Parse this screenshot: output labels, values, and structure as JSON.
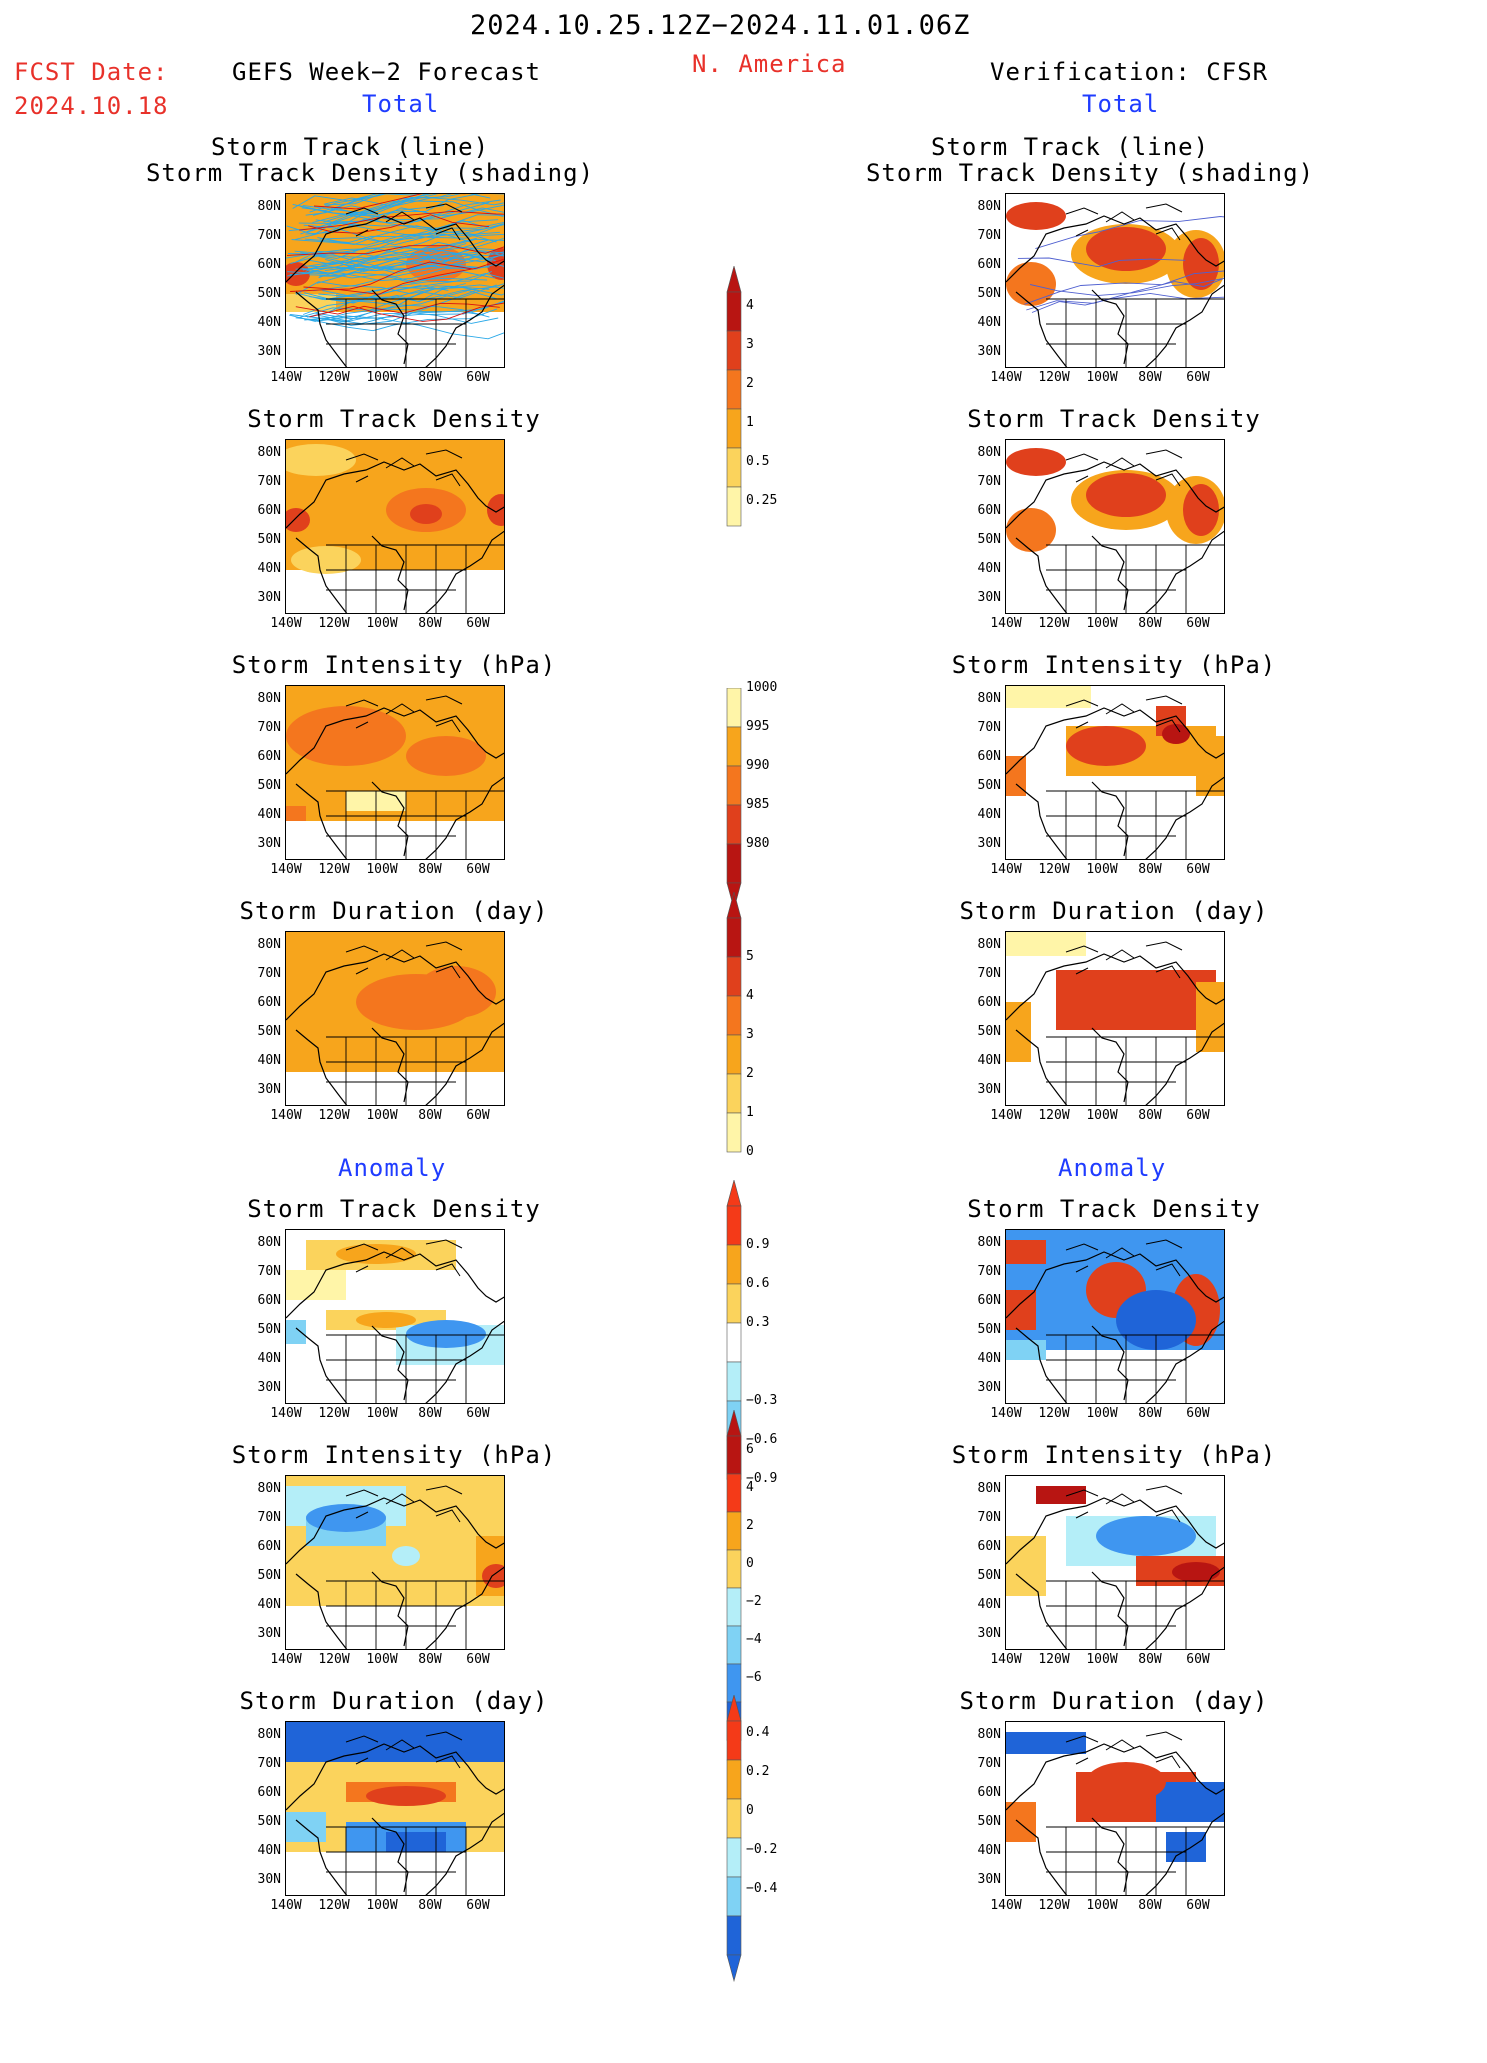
{
  "header": {
    "date_range": "2024.10.25.12Z−2024.11.01.06Z",
    "fcst_label": "FCST Date:",
    "fcst_date": "2024.10.18",
    "left_title": "GEFS Week−2 Forecast",
    "region": "N. America",
    "right_title": "Verification: CFSR",
    "total_left": "Total",
    "total_right": "Total",
    "anomaly_left": "Anomaly",
    "anomaly_right": "Anomaly"
  },
  "panel_titles": {
    "track_line": "Storm Track (line)",
    "track_shading": "Storm Track Density (shading)",
    "density": "Storm Track Density",
    "intensity": "Storm Intensity (hPa)",
    "duration": "Storm Duration (day)"
  },
  "axes": {
    "lat_labels": [
      "80N",
      "70N",
      "60N",
      "50N",
      "40N",
      "30N"
    ],
    "lon_labels": [
      "140W",
      "120W",
      "100W",
      "80W",
      "60W"
    ]
  },
  "colorbars": {
    "total_density": [
      "4",
      "3",
      "2",
      "1",
      "0.5",
      "0.25"
    ],
    "total_intensity": [
      "1000",
      "995",
      "990",
      "985",
      "980"
    ],
    "total_duration": [
      "5",
      "4",
      "3",
      "2",
      "1",
      "0"
    ],
    "anom_density": [
      "0.9",
      "0.6",
      "0.3",
      "−0.3",
      "−0.6",
      "−0.9"
    ],
    "anom_intensity": [
      "6",
      "4",
      "2",
      "0",
      "−2",
      "−4",
      "−6"
    ],
    "anom_duration": [
      "0.4",
      "0.2",
      "0",
      "−0.2",
      "−0.4"
    ]
  },
  "colors": {
    "warm": [
      "#fff5a8",
      "#fbd35c",
      "#f7a51c",
      "#f4761e",
      "#e0401c",
      "#b81512"
    ],
    "cool": [
      "#b4eef8",
      "#7fd2f4",
      "#3f96f0",
      "#1f64d8"
    ],
    "track_forecast": "#29a8e8",
    "track_forecast_alt": "#d81010",
    "track_verify": "#5060d0",
    "header_red": "#e8312a",
    "header_blue": "#1f3cff"
  }
}
